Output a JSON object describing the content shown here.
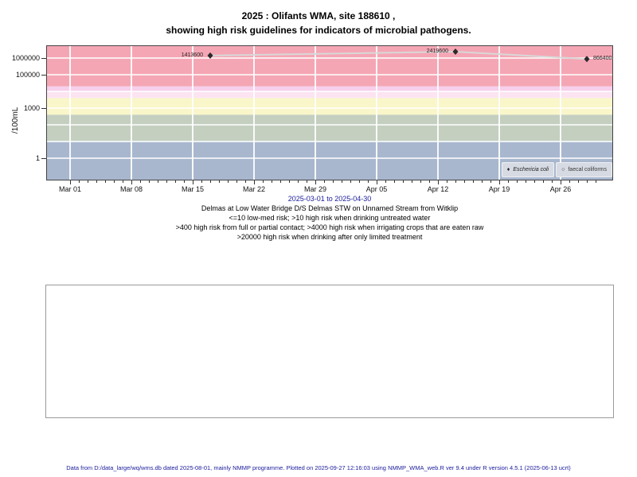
{
  "title": {
    "line1": "2025 : Olifants WMA, site 188610 ,",
    "line2": "showing high risk guidelines for indicators of microbial pathogens."
  },
  "chart_data": {
    "type": "scatter",
    "ylabel": "/100mL",
    "y_scale": "log",
    "ylim": [
      0.047,
      5800000
    ],
    "x_range": [
      "2025-03-01",
      "2025-04-30"
    ],
    "x_tick_labels": [
      "Mar 01",
      "Mar 08",
      "Mar 15",
      "Mar 22",
      "Mar 29",
      "Apr 05",
      "Apr 12",
      "Apr 19",
      "Apr 26"
    ],
    "y_ticks": [
      {
        "value": 1000000,
        "label": "1000000"
      },
      {
        "value": 100000,
        "label": "100000"
      },
      {
        "value": 1000,
        "label": "1000"
      },
      {
        "value": 1,
        "label": "1"
      }
    ],
    "grid": "white major gridlines on",
    "legend_position": "bottom-right inside plot",
    "risk_bands": [
      {
        "min": 20000,
        "max": 5800000,
        "color": "#f5a6b4",
        "meaning": ">20000 high risk when drinking after only limited treatment"
      },
      {
        "min": 10000,
        "max": 20000,
        "color": "#f6d0ec",
        "meaning": "4000-20000 high risk when irrigating crops that are eaten raw"
      },
      {
        "min": 4000,
        "max": 10000,
        "color": "#fce4f2",
        "meaning": "4000-20000 high risk when irrigating crops that are eaten raw"
      },
      {
        "min": 400,
        "max": 4000,
        "color": "#f9f6c9",
        "meaning": ">400 high risk from full or partial contact"
      },
      {
        "min": 10,
        "max": 400,
        "color": "#c4cfc0",
        "meaning": ">10 high risk when drinking untreated water"
      },
      {
        "min": 0.047,
        "max": 10,
        "color": "#a8b7ce",
        "meaning": "<=10 low-med risk"
      }
    ],
    "series": [
      {
        "name": "Eschericia coli",
        "marker": "filled-diamond",
        "line_color": "#d8d8d8",
        "point_color": "#2a2a2a",
        "points": [
          {
            "date": "2025-03-17",
            "value": 1413600,
            "label": "1413600",
            "label_side": "left"
          },
          {
            "date": "2025-04-14",
            "value": 2419600,
            "label": "2419600",
            "label_side": "left"
          },
          {
            "date": "2025-04-29",
            "value": 866400,
            "label": "866400",
            "label_side": "right"
          }
        ]
      },
      {
        "name": "faecal coliforms",
        "marker": "open-circle",
        "points": []
      }
    ],
    "legend": [
      {
        "marker": "♦",
        "label": "Eschericia coli"
      },
      {
        "marker": "○",
        "label": "faecal coliforms"
      }
    ]
  },
  "captions": {
    "date_range": "2025-03-01 to 2025-04-30",
    "site_description": "Delmas at Low Water Bridge D/S Delmas STW on Unnamed Stream from Witklip",
    "guideline1": "<=10 low-med risk; >10 high risk when drinking untreated water",
    "guideline2": ">400 high risk from full or partial contact; >4000 high risk when irrigating crops that are eaten raw",
    "guideline3": ">20000 high risk when drinking after only limited treatment"
  },
  "footer": "Data from D:/data_large/wq/wms.db dated 2025-08-01, mainly NMMP programme. Plotted on 2025-09-27 12:16:03 using NMMP_WMA_web.R ver 9.4 under R version 4.5.1 (2025-06-13 ucrt)"
}
